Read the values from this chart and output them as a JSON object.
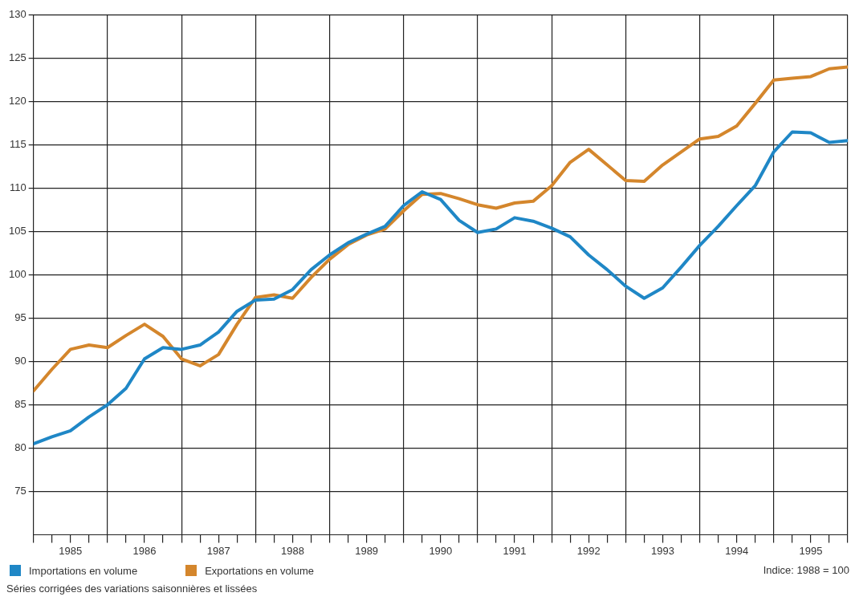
{
  "chart_data": {
    "type": "line",
    "x": [
      1985,
      1985.25,
      1985.5,
      1985.75,
      1986,
      1986.25,
      1986.5,
      1986.75,
      1987,
      1987.25,
      1987.5,
      1987.75,
      1988,
      1988.25,
      1988.5,
      1988.75,
      1989,
      1989.25,
      1989.5,
      1989.75,
      1990,
      1990.25,
      1990.5,
      1990.75,
      1991,
      1991.25,
      1991.5,
      1991.75,
      1992,
      1992.25,
      1992.5,
      1992.75,
      1993,
      1993.25,
      1993.5,
      1993.75,
      1994,
      1994.25,
      1994.5,
      1994.75,
      1995,
      1995.25,
      1995.5,
      1995.75,
      1996
    ],
    "series": [
      {
        "name": "Importations en volume",
        "color": "#1f87c6",
        "values": [
          80.5,
          81.3,
          82.0,
          83.6,
          85.0,
          86.9,
          90.3,
          91.6,
          91.4,
          91.9,
          93.4,
          95.8,
          97.1,
          97.2,
          98.3,
          100.6,
          102.3,
          103.7,
          104.7,
          105.6,
          108.0,
          109.6,
          108.7,
          106.3,
          104.9,
          105.3,
          106.6,
          106.2,
          105.4,
          104.4,
          102.3,
          100.6,
          98.7,
          97.3,
          98.5,
          100.9,
          103.4,
          105.6,
          108.0,
          110.3,
          114.2,
          116.5,
          116.4,
          115.3,
          115.5
        ]
      },
      {
        "name": "Exportations en volume",
        "color": "#d4862c",
        "values": [
          86.6,
          89.1,
          91.4,
          91.9,
          91.6,
          93.0,
          94.3,
          92.9,
          90.3,
          89.5,
          90.8,
          94.3,
          97.4,
          97.7,
          97.3,
          99.7,
          101.8,
          103.5,
          104.6,
          105.3,
          107.4,
          109.3,
          109.4,
          108.8,
          108.1,
          107.7,
          108.3,
          108.5,
          110.3,
          113.0,
          114.5,
          112.7,
          110.9,
          110.8,
          112.7,
          114.2,
          115.7,
          116.0,
          117.2,
          119.8,
          122.5,
          122.7,
          122.9,
          123.8,
          124.0
        ]
      }
    ],
    "xlim": [
      1985,
      1996
    ],
    "xticks": [
      {
        "value": 1985,
        "label": null
      },
      {
        "value": 1985.25,
        "label": null
      },
      {
        "value": 1985.5,
        "label": "1985"
      },
      {
        "value": 1985.75,
        "label": null
      },
      {
        "value": 1986,
        "label": null
      },
      {
        "value": 1986.25,
        "label": null
      },
      {
        "value": 1986.5,
        "label": "1986"
      },
      {
        "value": 1986.75,
        "label": null
      },
      {
        "value": 1987,
        "label": null
      },
      {
        "value": 1987.25,
        "label": null
      },
      {
        "value": 1987.5,
        "label": "1987"
      },
      {
        "value": 1987.75,
        "label": null
      },
      {
        "value": 1988,
        "label": null
      },
      {
        "value": 1988.25,
        "label": null
      },
      {
        "value": 1988.5,
        "label": "1988"
      },
      {
        "value": 1988.75,
        "label": null
      },
      {
        "value": 1989,
        "label": null
      },
      {
        "value": 1989.25,
        "label": null
      },
      {
        "value": 1989.5,
        "label": "1989"
      },
      {
        "value": 1989.75,
        "label": null
      },
      {
        "value": 1990,
        "label": null
      },
      {
        "value": 1990.25,
        "label": null
      },
      {
        "value": 1990.5,
        "label": "1990"
      },
      {
        "value": 1990.75,
        "label": null
      },
      {
        "value": 1991,
        "label": null
      },
      {
        "value": 1991.25,
        "label": null
      },
      {
        "value": 1991.5,
        "label": "1991"
      },
      {
        "value": 1991.75,
        "label": null
      },
      {
        "value": 1992,
        "label": null
      },
      {
        "value": 1992.25,
        "label": null
      },
      {
        "value": 1992.5,
        "label": "1992"
      },
      {
        "value": 1992.75,
        "label": null
      },
      {
        "value": 1993,
        "label": null
      },
      {
        "value": 1993.25,
        "label": null
      },
      {
        "value": 1993.5,
        "label": "1993"
      },
      {
        "value": 1993.75,
        "label": null
      },
      {
        "value": 1994,
        "label": null
      },
      {
        "value": 1994.25,
        "label": null
      },
      {
        "value": 1994.5,
        "label": "1994"
      },
      {
        "value": 1994.75,
        "label": null
      },
      {
        "value": 1995,
        "label": null
      },
      {
        "value": 1995.25,
        "label": null
      },
      {
        "value": 1995.5,
        "label": "1995"
      },
      {
        "value": 1995.75,
        "label": null
      },
      {
        "value": 1996,
        "label": null
      }
    ],
    "ylim": [
      70,
      130
    ],
    "yticks": [
      75,
      80,
      85,
      90,
      95,
      100,
      105,
      110,
      115,
      120,
      125,
      130
    ],
    "grid": true,
    "legend": "bottom",
    "marker": "none",
    "line_style": "solid",
    "annotations": [
      "Indice: 1988 = 100",
      "Séries corrigées des variations saisonnières et lissées"
    ]
  }
}
